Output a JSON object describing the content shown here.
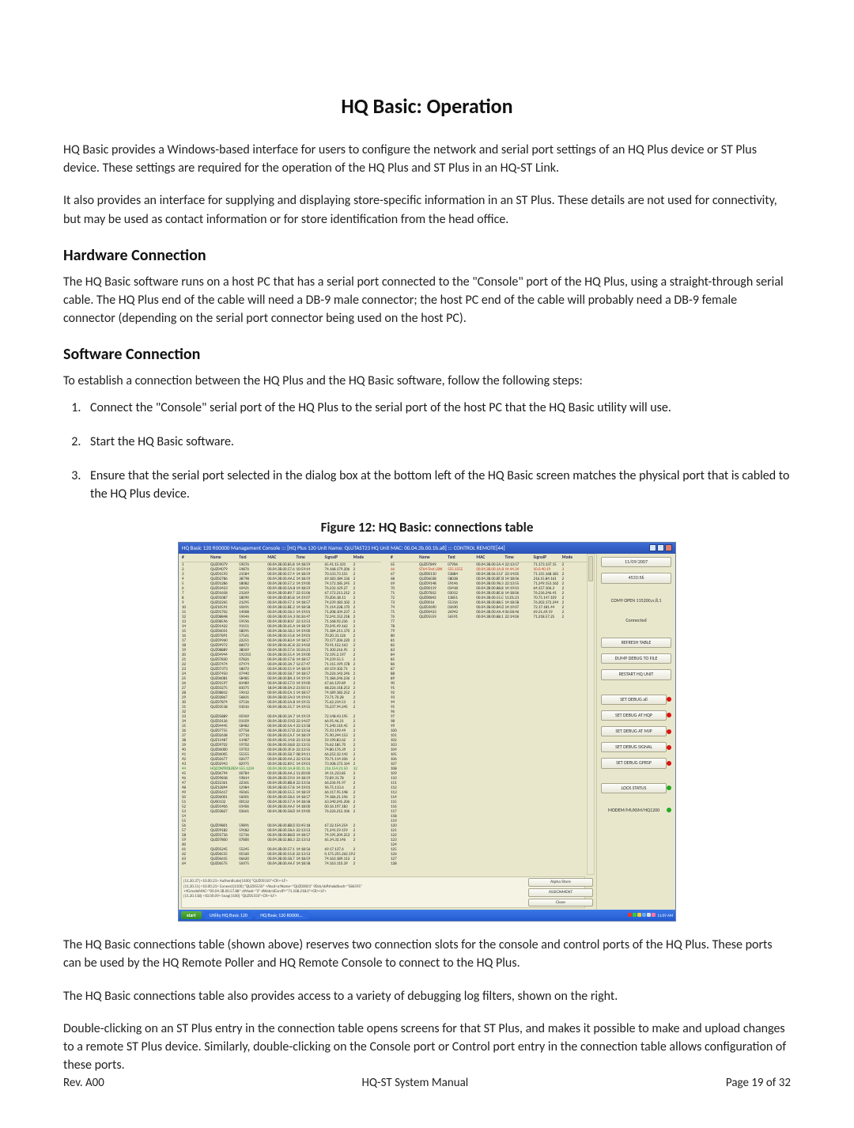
{
  "title": "HQ Basic: Operation",
  "intro1": "HQ Basic provides a Windows-based interface for users to configure the network and serial port settings of an HQ Plus device or ST Plus device. These settings are required for the operation of the HQ Plus and ST Plus in an HQ-ST Link.",
  "intro2": "It also provides an interface for supplying and displaying store-specific information in an ST Plus. These details are not used for connectivity, but may be used as contact information or for store identification from the head office.",
  "hw_heading": "Hardware Connection",
  "hw_text": "The HQ Basic software runs on a host PC that has a serial port connected to the \"Console\" port of the HQ Plus, using a straight-through serial cable. The HQ Plus end of the cable will need a DB-9 male connector; the host PC end of the cable will probably need a DB-9 female connector (depending on the serial port connector being used on the host PC).",
  "sw_heading": "Software Connection",
  "sw_intro": "To establish a connection between the HQ Plus and the HQ Basic software, follow the following steps:",
  "steps": [
    "Connect the \"Console\" serial port of the HQ Plus to the serial port of the host PC that the HQ Basic utility will use.",
    "Start the HQ Basic software.",
    "Ensure that the serial port selected in the dialog box at the bottom left of the HQ Basic screen matches the physical port that is cabled to the HQ Plus device."
  ],
  "fig_caption": "Figure 12: HQ Basic: connections table",
  "after1": "The HQ Basic connections table (shown above) reserves two connection slots for the console and control ports of the HQ Plus. These ports can be used by the HQ Remote Poller and HQ Remote Console to connect to the HQ Plus.",
  "after2": "The HQ Basic connections table also provides access to a variety of debugging log filters, shown on the right.",
  "after3": "Double-clicking on an ST Plus entry in the connection table opens screens for that ST Plus, and makes it possible to make and upload changes to a remote ST Plus device. Similarly, double-clicking on the Console port or Control port entry in the connection table allows configuration of these ports.",
  "footer": {
    "left": "Rev. A00",
    "center": "HQ-ST System Manual",
    "right": "Page 19 of 32"
  },
  "screenshot": {
    "titlebar": "HQ Basic 120 R00000 Management Console ::: [HQ Plus 120 Unit Name: QLUTAST23  HQ Unit MAC: 00.04.3b.00.1b.a8] ::: CONTROL REMOTE[44]",
    "date": "11/09/2007",
    "counter": "4533:56",
    "comstatus": "COM9 OPEN 115200,n,8,1",
    "connected": "Connected",
    "buttons": {
      "refresh": "REFRESH TABLE",
      "dump": "DUMP DEBUG TO FILE",
      "restart": "RESTART HQ UNIT",
      "dbg_all": "SET DEBUG all",
      "dbg_at_hqp": "SET DEBUG AT HQP",
      "dbg_at_mjp": "SET DEBUG AT MJP",
      "dbg_signal": "SET DEBUG SIGNAL",
      "dbg_gprsp": "SET DEBUG GPRSP",
      "lock": "LOCK STATUS",
      "modem": "MODEM/MUXSM/HQ1200"
    },
    "rlinks": {
      "a": "Alpha Store",
      "b": "ASSIGNMENT",
      "c": "Close"
    },
    "taskbar": {
      "start": "start",
      "task1": "Utility HQ Basic 120",
      "task2": "HQ Basic 120 R0000...",
      "clock": "11:09 AM"
    },
    "cols": [
      "#",
      "Name",
      "Txid",
      "MAC",
      "Time",
      "SignalP",
      "Mode"
    ],
    "rows_left": [
      {
        "n": "1",
        "name": "QUZ09079",
        "txid": "59076",
        "mac": "00.04.3B.00.85.82",
        "time": "14:18:59",
        "sig": "65.41.15.101",
        "mode": "2"
      },
      {
        "n": "2",
        "name": "QUZ04079",
        "txid": "54876",
        "mac": "00.04.3B.00.57.63",
        "time": "10:59:14",
        "sig": "74.168.179.206",
        "mode": "2"
      },
      {
        "n": "3",
        "name": "QUZ01593",
        "txid": "21584",
        "mac": "00.04.3B.00.57.4B",
        "time": "14:18:59",
        "sig": "70.133.73.155",
        "mode": "2"
      },
      {
        "n": "4",
        "name": "QUZ02786",
        "txid": "38798",
        "mac": "00.04.3B.00.AA.D2",
        "time": "14:18:59",
        "sig": "69.183.184.136",
        "mode": "2"
      },
      {
        "n": "5",
        "name": "QUZ01286",
        "txid": "18082",
        "mac": "00.04.3B.00.57.24",
        "time": "14:19:00",
        "sig": "74.172.185.245",
        "mode": "2"
      },
      {
        "n": "6",
        "name": "QUZ03423",
        "txid": "10421",
        "mac": "00.04.3B.00.5A.80",
        "time": "14:18:59",
        "sig": "76.232.129.27",
        "mode": "2"
      },
      {
        "n": "7",
        "name": "QUZ01658",
        "txid": "21269",
        "mac": "00.04.3B.00.89.74",
        "time": "22:15:06",
        "sig": "67.172.211.212",
        "mode": "2"
      },
      {
        "n": "8",
        "name": "QUZ01087",
        "txid": "18090",
        "mac": "00.04.3B.00.85.88",
        "time": "14:19:07",
        "sig": "70.206.18.11",
        "mode": "2"
      },
      {
        "n": "9",
        "name": "QUZ02265",
        "txid": "21295",
        "mac": "00.04.3B.00.57.1C",
        "time": "14:18:57",
        "sig": "74.239.183.102",
        "mode": "2"
      },
      {
        "n": "10",
        "name": "QUZ10591",
        "txid": "10691",
        "mac": "00.04.3B.02.BE.28",
        "time": "14:18:58",
        "sig": "71.114.228.170",
        "mode": "2"
      },
      {
        "n": "11",
        "name": "QUZ01702",
        "txid": "14008",
        "mac": "00.04.3B.00.58.35",
        "time": "14:19:01",
        "sig": "71.208.104.237",
        "mode": "2"
      },
      {
        "n": "12",
        "name": "QUZ08848",
        "txid": "59646",
        "mac": "00.04.3B.00.5A.3E",
        "time": "06:36:47",
        "sig": "72.241.152.218",
        "mode": "2"
      },
      {
        "n": "13",
        "name": "QUZ08596",
        "txid": "59596",
        "mac": "00.04.3B.00.83.F1",
        "time": "22:13:53",
        "sig": "71.168.92.236",
        "mode": "2"
      },
      {
        "n": "14",
        "name": "QUZ01422",
        "txid": "91151",
        "mac": "00.04.3B.00.65.A1",
        "time": "14:18:59",
        "sig": "70.245.49.162",
        "mode": "2"
      },
      {
        "n": "15",
        "name": "QUZ06031",
        "txid": "58091",
        "mac": "00.04.3B.06.58.3A",
        "time": "14:19:00",
        "sig": "71.184.211.170",
        "mode": "2"
      },
      {
        "n": "16",
        "name": "QUZ07891",
        "txid": "57561",
        "mac": "00.04.3B.00.55.83",
        "time": "14:19:01",
        "sig": "70.20.31.126",
        "mode": "2"
      },
      {
        "n": "17",
        "name": "QUZ09960",
        "txid": "22251",
        "mac": "00.04.3B.00.83.41",
        "time": "14:18:57",
        "sig": "70.177.206.220",
        "mode": "2"
      },
      {
        "n": "18",
        "name": "QUZ09972",
        "txid": "86072",
        "mac": "00.04.3B.06.6C.8C",
        "time": "22:14:02",
        "sig": "70.91.152.163",
        "mode": "2"
      },
      {
        "n": "19",
        "name": "QUZ08889",
        "txid": "38069",
        "mac": "00.04.3B.00.57.69",
        "time": "10:26:21",
        "sig": "71.100.216.95",
        "mode": "2"
      },
      {
        "n": "20",
        "name": "QUZ04944",
        "txid": "192315",
        "mac": "00.04.3B.00.55.44",
        "time": "14:19:00",
        "sig": "72.195.2.197",
        "mode": "2"
      },
      {
        "n": "21",
        "name": "QUZ07830",
        "txid": "07826",
        "mac": "00.04.3B.00.57.88",
        "time": "14:18:57",
        "sig": "74.239.55.5",
        "mode": "2"
      },
      {
        "n": "22",
        "name": "QUZ07474",
        "txid": "07474",
        "mac": "00.04.3B.00.3A.79",
        "time": "12:27:47",
        "sig": "71.115.199.178",
        "mode": "2"
      },
      {
        "n": "23",
        "name": "QUZ07373",
        "txid": "18072",
        "mac": "00.04.3B.00.55.90",
        "time": "14:18:59",
        "sig": "69.159.102.71",
        "mode": "2"
      },
      {
        "n": "24",
        "name": "QUZ07450",
        "txid": "07440",
        "mac": "00.04.3B.00.58.79",
        "time": "14:18:57",
        "sig": "76.226.142.246",
        "mode": "2"
      },
      {
        "n": "25",
        "name": "QUZ06081",
        "txid": "58485",
        "mac": "00.04.3B.00.BA.33",
        "time": "14:19:59",
        "sig": "71.186.246.236",
        "mode": "2"
      },
      {
        "n": "26",
        "name": "QUZ01597",
        "txid": "81489",
        "mac": "00.04.3B.00.57.0E",
        "time": "14:19:00",
        "sig": "67.66.139.89",
        "mode": "2"
      },
      {
        "n": "27",
        "name": "QUZ03275",
        "txid": "81075",
        "mac": "18.04.3B.08.0A.2E",
        "time": "23:50:11",
        "sig": "68.226.118.253",
        "mode": "2"
      },
      {
        "n": "28",
        "name": "QUZ08812",
        "txid": "59612",
        "mac": "00.04.3B.00.CA.14",
        "time": "14:18:57",
        "sig": "74.189.182.252",
        "mode": "2"
      },
      {
        "n": "29",
        "name": "QUZ02867",
        "txid": "56831",
        "mac": "00.04.3B.00.5A.00",
        "time": "14:19:01",
        "sig": "73.71.70.28",
        "mode": "2"
      },
      {
        "n": "30",
        "name": "QUZ07874",
        "txid": "07536",
        "mac": "00.04.3B.00.5A.8B",
        "time": "14:19:55",
        "sig": "75.62.214.53",
        "mode": "2"
      },
      {
        "n": "31",
        "name": "QUZ03518",
        "txid": "01016",
        "mac": "00.04.3B.06.55.7E",
        "time": "14:19:55",
        "sig": "76.237.94.245",
        "mode": "2"
      },
      {
        "n": "32",
        "name": "",
        "txid": "",
        "mac": "",
        "time": "",
        "sig": "",
        "mode": ""
      },
      {
        "n": "33",
        "name": "QUZ05889",
        "txid": "05969",
        "mac": "00.04.3B.00.3A.7F",
        "time": "14:19:59",
        "sig": "72.148.43.195",
        "mode": "2"
      },
      {
        "n": "34",
        "name": "QUZ03136",
        "txid": "01109",
        "mac": "00.04.3B.00.59.D3",
        "time": "22:14:07",
        "sig": "66.95.46.21",
        "mode": "2"
      },
      {
        "n": "35",
        "name": "QUZ04445",
        "txid": "58482",
        "mac": "00.04.3B.00.5A.43",
        "time": "22:13:58",
        "sig": "71.240.110.45",
        "mode": "2"
      },
      {
        "n": "36",
        "name": "QUZ07755",
        "txid": "07758",
        "mac": "00.04.3B.00.57.DE",
        "time": "22:13:56",
        "sig": "75.93.199.49",
        "mode": "2"
      },
      {
        "n": "37",
        "name": "QUZ02638",
        "txid": "07716",
        "mac": "00.04.3B.00.CA.FF",
        "time": "14:18:59",
        "sig": "75.90.244.153",
        "mode": "2"
      },
      {
        "n": "38",
        "name": "QUZ11487",
        "txid": "11487",
        "mac": "00.04.3B.05.14.80",
        "time": "22:13:56",
        "sig": "59.190.83.62",
        "mode": "2"
      },
      {
        "n": "39",
        "name": "QUZ09702",
        "txid": "59702",
        "mac": "00.04.3B.00.58.B6",
        "time": "22:13:55",
        "sig": "76.62.185.70",
        "mode": "2"
      },
      {
        "n": "40",
        "name": "QUZ06000",
        "txid": "59703",
        "mac": "00.04.3B.00.3F.64",
        "time": "22:13:55",
        "sig": "74.80.176.39",
        "mode": "2"
      },
      {
        "n": "41",
        "name": "QUZ06005",
        "txid": "55555",
        "mac": "00.04.3B.00.58.70",
        "time": "08:34:11",
        "sig": "66.252.32.142",
        "mode": "2"
      },
      {
        "n": "42",
        "name": "QUZ02677",
        "txid": "02677",
        "mac": "00.04.3B.00.AA.24",
        "time": "22:13:56",
        "sig": "70.71.114.106",
        "mode": "2"
      },
      {
        "n": "43",
        "name": "QUZ02943",
        "txid": "82975",
        "mac": "00.04.3B.02.89.C8",
        "time": "14:19:01",
        "sig": "73.108.173.164",
        "mode": "2"
      },
      {
        "n": "44",
        "name": "HQCONTROLREMOTE",
        "txid": "555.1234",
        "mac": "00.04.3B.00.1A.89",
        "time": "00.11.16",
        "sig": "216.154.21.50",
        "mode": "32",
        "hl": "green"
      },
      {
        "n": "45",
        "name": "QUZ06794",
        "txid": "00784",
        "mac": "00.04.3B.00.AA.20",
        "time": "11:20:00",
        "sig": "34.11.233.85",
        "mode": "2"
      },
      {
        "n": "46",
        "name": "QUZ09818",
        "txid": "59814",
        "mac": "00.04.3B.00.59.00",
        "time": "14:18:59",
        "sig": "72.89.31.78",
        "mode": "2"
      },
      {
        "n": "47",
        "name": "QUZ22361",
        "txid": "22361",
        "mac": "00.04.3B.00.8B.88",
        "time": "22:13:56",
        "sig": "66.236.91.97",
        "mode": "2"
      },
      {
        "n": "48",
        "name": "QUZ12894",
        "txid": "12984",
        "mac": "00.04.3B.00.57.82",
        "time": "14:19:01",
        "sig": "96.75.113.6",
        "mode": "2"
      },
      {
        "n": "49",
        "name": "QUZ05617",
        "txid": "45065",
        "mac": "00.04.3B.00.55.5F",
        "time": "14:18:59",
        "sig": "66.117.95.148",
        "mode": "2"
      },
      {
        "n": "50",
        "name": "QUZ06001",
        "txid": "56001",
        "mac": "00.04.3B.00.58.6C",
        "time": "14:18:57",
        "sig": "74.186.21.196",
        "mode": "2"
      },
      {
        "n": "51",
        "name": "QU00132",
        "txid": "00132",
        "mac": "00.04.3B.00.57.AA",
        "time": "14:18:58",
        "sig": "63.340.245.206",
        "mode": "2"
      },
      {
        "n": "52",
        "name": "QUZ01406",
        "txid": "01406",
        "mac": "00.04.3B.00.AA.F2",
        "time": "14:18:00",
        "sig": "00.16.197.183",
        "mode": "2"
      },
      {
        "n": "53",
        "name": "QUZ03827",
        "txid": "03661",
        "mac": "00.04.3B.00.58.D6",
        "time": "14:19:00",
        "sig": "76.226.212.106",
        "mode": "2"
      },
      {
        "n": "54",
        "name": "",
        "txid": "",
        "mac": "",
        "time": "",
        "sig": "",
        "mode": ""
      },
      {
        "n": "55",
        "name": "",
        "txid": "",
        "mac": "",
        "time": "",
        "sig": "",
        "mode": ""
      },
      {
        "n": "56",
        "name": "QUZ09801",
        "txid": "59891",
        "mac": "00.04.3B.00.8B.D9",
        "time": "03:45:18",
        "sig": "67.32.154.254",
        "mode": "2"
      },
      {
        "n": "57",
        "name": "QUZ09182",
        "txid": "59182",
        "mac": "00.04.3B.00.58.6C",
        "time": "22:13:53",
        "sig": "71.241.59.159",
        "mode": "2"
      },
      {
        "n": "58",
        "name": "QUZ05736",
        "txid": "55736",
        "mac": "00.04.3B.00.88.D4",
        "time": "14:18:57",
        "sig": "74.195.204.253",
        "mode": "2"
      },
      {
        "n": "59",
        "name": "QUZ07800",
        "txid": "07800",
        "mac": "00.04.3B.02.88.31",
        "time": "22:13:53",
        "sig": "65.34.33.146",
        "mode": "2"
      },
      {
        "n": "60",
        "name": "",
        "txid": "",
        "mac": "",
        "time": "",
        "sig": "",
        "mode": ""
      },
      {
        "n": "61",
        "name": "QUZ05245",
        "txid": "55245",
        "mac": "00.04.3B.00.57.18",
        "time": "14:18:56",
        "sig": "69.17.137.6",
        "mode": "2"
      },
      {
        "n": "62",
        "name": "QUZ06555",
        "txid": "05560",
        "mac": "00.04.3B.00.55.88",
        "time": "22:13:53",
        "sig": "0.175.255.262.198",
        "mode": "2"
      },
      {
        "n": "63",
        "name": "QUZ06615",
        "txid": "06620",
        "mac": "00.04.3B.00.58.7D",
        "time": "14:18:59",
        "sig": "74.163.189.113",
        "mode": "2"
      },
      {
        "n": "64",
        "name": "QUZ06575",
        "txid": "56975",
        "mac": "00.04.3B.00.AA.FF",
        "time": "14:18:58",
        "sig": "74.163.110.39",
        "mode": "2"
      }
    ],
    "rows_right": [
      {
        "n": "65",
        "name": "QUZ07849",
        "txid": "07906",
        "mac": "00.04.3B.00.5A.43",
        "time": "22:13:57",
        "sig": "71.173.137.15",
        "mode": "2"
      },
      {
        "n": "66",
        "name": "ST64-Test LSW",
        "txid": "555.1555",
        "mac": "00.04.3B.00.1A.8F",
        "time": "14.44.34",
        "sig": "10.0.40.19",
        "mode": "3",
        "hl": "red"
      },
      {
        "n": "67",
        "name": "QUZ00110",
        "txid": "53884",
        "mac": "00.04.3B.06.55.F1",
        "time": "22:14:05",
        "sig": "71.155.168.181",
        "mode": "2"
      },
      {
        "n": "68",
        "name": "QUZ06038",
        "txid": "58038",
        "mac": "00.04.3B.00.BF.5F",
        "time": "14:18:06",
        "sig": "216.15.84.161",
        "mode": "2"
      },
      {
        "n": "69",
        "name": "QUZ09148",
        "txid": "59146",
        "mac": "00.04.3B.00.98.36",
        "time": "22:13:55",
        "sig": "71.249.153.162",
        "mode": "2"
      },
      {
        "n": "70",
        "name": "QUZ00119",
        "txid": "03418",
        "mac": "00.04.3B.00.88.88",
        "time": "14:19:01",
        "sig": "64.157.106.3",
        "mode": "2"
      },
      {
        "n": "71",
        "name": "QUZ07812",
        "txid": "03012",
        "mac": "00.04.3B.00.8E.88",
        "time": "14:18:06",
        "sig": "76.236.246.41",
        "mode": "2"
      },
      {
        "n": "72",
        "name": "QUZ00842",
        "txid": "13851",
        "mac": "00.04.3B.00.55.C0",
        "time": "11:01:21",
        "sig": "70.75.147.109",
        "mode": "2"
      },
      {
        "n": "73",
        "name": "QUZ0016",
        "txid": "55316",
        "mac": "00.04.3B.00.88.59",
        "time": "14:18:58",
        "sig": "76.202.172.244",
        "mode": "2"
      },
      {
        "n": "74",
        "name": "QUZ03690",
        "txid": "03690",
        "mac": "00.04.3B.00.B4.DC",
        "time": "14:19:07",
        "sig": "72.17.181.44",
        "mode": "2"
      },
      {
        "n": "75",
        "name": "QUZ00433",
        "txid": "26942",
        "mac": "00.04.3B.00.AA.42",
        "time": "06:58:46",
        "sig": "69.21.69.19",
        "mode": "2"
      },
      {
        "n": "76",
        "name": "QUZ05559",
        "txid": "56591",
        "mac": "00.04.3B.00.88.18",
        "time": "22:14:06",
        "sig": "71.218.57.25",
        "mode": "2"
      }
    ],
    "blank_right_from": 77,
    "blank_right_to": 128,
    "log": [
      "[11.20.37] <10.00.21> Authenticate[1100] \"QUZ05550\"<CR><LF>",
      "[11.20.51] <10.00.21> Connect[1100] \"QUZ05550\" <Abcd>a!Name=\"QUZ00001\" 9Dck/sbPshxkdhash=\"586595\"",
      "     +4GmsdeMAC=\"00.04.3B.00.57.88\" ctMask=\"2\" dWeb/dGsrcIP=\"71.108.218.0\"<CR><LF>",
      "[11.20.118] <10.00.09> Snap[1100] \"QUZ05550\"<CR><LF>"
    ]
  }
}
